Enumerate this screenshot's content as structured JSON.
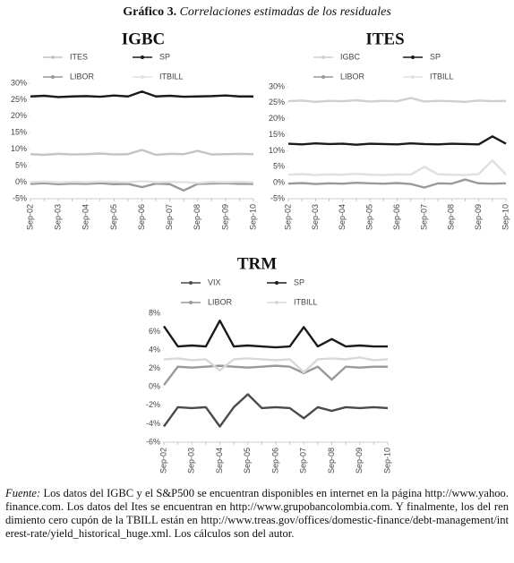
{
  "figure_label": "Gráfico 3.",
  "figure_title": "Correlaciones estimadas de los residuales",
  "chart_data": [
    {
      "type": "line",
      "title": "IGBC",
      "categories": [
        "Sep-02",
        null,
        "Sep-03",
        null,
        "Sep-04",
        null,
        "Sep-05",
        null,
        "Sep-06",
        null,
        "Sep-07",
        null,
        "Sep-08",
        null,
        "Sep-09",
        null,
        "Sep-10"
      ],
      "ylim": [
        -5,
        30
      ],
      "yticks": [
        {
          "value": -5,
          "label": "-5%"
        },
        {
          "value": 0,
          "label": "0%"
        },
        {
          "value": 5,
          "label": "5%"
        },
        {
          "value": 10,
          "label": "10%"
        },
        {
          "value": 15,
          "label": "15%"
        },
        {
          "value": 20,
          "label": "20%"
        },
        {
          "value": 25,
          "label": "25%"
        },
        {
          "value": 30,
          "label": "30%"
        }
      ],
      "grid": false,
      "series": [
        {
          "name": "ITES",
          "color": "#c4c4c4",
          "values": [
            8.5,
            8.3,
            8.6,
            8.4,
            8.5,
            8.7,
            8.4,
            8.5,
            9.8,
            8.3,
            8.6,
            8.5,
            9.5,
            8.4,
            8.5,
            8.6,
            8.5
          ]
        },
        {
          "name": "SP",
          "color": "#1a1a1a",
          "values": [
            26,
            26.2,
            25.8,
            26,
            26.1,
            25.9,
            26.3,
            26,
            27.5,
            26,
            26.2,
            25.9,
            26,
            26.1,
            26.3,
            26,
            26
          ]
        },
        {
          "name": "LIBOR",
          "color": "#9a9a9a",
          "values": [
            -0.5,
            -0.3,
            -0.6,
            -0.4,
            -0.5,
            -0.3,
            -0.6,
            -0.5,
            -1.5,
            -0.4,
            -0.6,
            -2.5,
            -0.5,
            -0.4,
            -0.3,
            -0.5,
            -0.5
          ]
        },
        {
          "name": "ITBILL",
          "color": "#e2e2e2",
          "values": [
            0,
            0.2,
            -0.1,
            0.1,
            0,
            0.2,
            0.1,
            0,
            0.3,
            0,
            0.1,
            0,
            -0.2,
            0.1,
            0,
            0.1,
            0
          ]
        }
      ]
    },
    {
      "type": "line",
      "title": "ITES",
      "categories": [
        "Sep-02",
        null,
        "Sep-03",
        null,
        "Sep-04",
        null,
        "Sep-05",
        null,
        "Sep-06",
        null,
        "Sep-07",
        null,
        "Sep-08",
        null,
        "Sep-09",
        null,
        "Sep-10"
      ],
      "ylim": [
        -5,
        30
      ],
      "yticks": [
        {
          "value": -5,
          "label": "-5%"
        },
        {
          "value": 0,
          "label": "0%"
        },
        {
          "value": 5,
          "label": "5%"
        },
        {
          "value": 10,
          "label": "10%"
        },
        {
          "value": 15,
          "label": "15%"
        },
        {
          "value": 20,
          "label": "20%"
        },
        {
          "value": 25,
          "label": "25%"
        },
        {
          "value": 30,
          "label": "30%"
        }
      ],
      "grid": false,
      "series": [
        {
          "name": "IGBC",
          "color": "#cfcfcf",
          "values": [
            25.5,
            25.7,
            25.3,
            25.6,
            25.5,
            25.8,
            25.4,
            25.6,
            25.5,
            26.5,
            25.4,
            25.6,
            25.5,
            25.3,
            25.7,
            25.5,
            25.6
          ]
        },
        {
          "name": "SP",
          "color": "#1a1a1a",
          "values": [
            12.2,
            12,
            12.3,
            12.1,
            12.2,
            11.9,
            12.2,
            12.1,
            12,
            12.3,
            12.1,
            12,
            12.2,
            12.1,
            12,
            14.5,
            12.2
          ]
        },
        {
          "name": "LIBOR",
          "color": "#9a9a9a",
          "values": [
            -0.3,
            -0.1,
            -0.4,
            -0.2,
            -0.3,
            0,
            -0.2,
            -0.3,
            -0.1,
            -0.4,
            -1.5,
            -0.2,
            -0.3,
            1,
            -0.2,
            -0.3,
            -0.2
          ]
        },
        {
          "name": "ITBILL",
          "color": "#e0e0e0",
          "values": [
            2.5,
            2.7,
            2.4,
            2.6,
            2.5,
            2.8,
            2.5,
            2.4,
            2.6,
            2.5,
            5,
            2.6,
            2.5,
            2.4,
            2.7,
            7,
            2.6
          ]
        }
      ]
    },
    {
      "type": "line",
      "title": "TRM",
      "categories": [
        "Sep-02",
        null,
        "Sep-03",
        null,
        "Sep-04",
        null,
        "Sep-05",
        null,
        "Sep-06",
        null,
        "Sep-07",
        null,
        "Sep-08",
        null,
        "Sep-09",
        null,
        "Sep-10"
      ],
      "ylim": [
        -6,
        8
      ],
      "yticks": [
        {
          "value": -6,
          "label": "-6%"
        },
        {
          "value": -4,
          "label": "-4%"
        },
        {
          "value": -2,
          "label": "-2%"
        },
        {
          "value": 0,
          "label": "0%"
        },
        {
          "value": 2,
          "label": "2%"
        },
        {
          "value": 4,
          "label": "4%"
        },
        {
          "value": 6,
          "label": "6%"
        },
        {
          "value": 8,
          "label": "8%"
        }
      ],
      "grid": false,
      "series": [
        {
          "name": "VIX",
          "color": "#4a4a4a",
          "values": [
            -4.3,
            -2.2,
            -2.3,
            -2.2,
            -4.3,
            -2.2,
            -0.8,
            -2.3,
            -2.2,
            -2.3,
            -3.4,
            -2.2,
            -2.6,
            -2.2,
            -2.3,
            -2.2,
            -2.3
          ]
        },
        {
          "name": "SP",
          "color": "#1a1a1a",
          "values": [
            6.6,
            4.4,
            4.5,
            4.4,
            7.2,
            4.4,
            4.5,
            4.4,
            4.3,
            4.4,
            6.5,
            4.4,
            5.2,
            4.4,
            4.5,
            4.4,
            4.4
          ]
        },
        {
          "name": "LIBOR",
          "color": "#9a9a9a",
          "values": [
            0.2,
            2.2,
            2.1,
            2.2,
            2.3,
            2.2,
            2.1,
            2.2,
            2.3,
            2.2,
            1.5,
            2.2,
            0.8,
            2.2,
            2.1,
            2.2,
            2.2
          ]
        },
        {
          "name": "ITBILL",
          "color": "#d8d8d8",
          "values": [
            3,
            3.1,
            2.9,
            3,
            1.8,
            3,
            3.1,
            3,
            2.9,
            3,
            1.6,
            3,
            3.1,
            3,
            3.2,
            2.9,
            3
          ]
        }
      ]
    }
  ],
  "source_label": "Fuente:",
  "source_text": "Los datos del IGBC y el S&P500 se encuentran disponibles en internet en la página http://www.yahoo.finance.com. Los datos del Ites se encuentran en http://www.grupobancolombia.com. Y finalmente, los del rendimiento cero cupón de la TBILL están en http://www.treas.gov/offices/domestic-finance/debt-management/interest-rate/yield_historical_huge.xml. Los cálculos son del autor."
}
